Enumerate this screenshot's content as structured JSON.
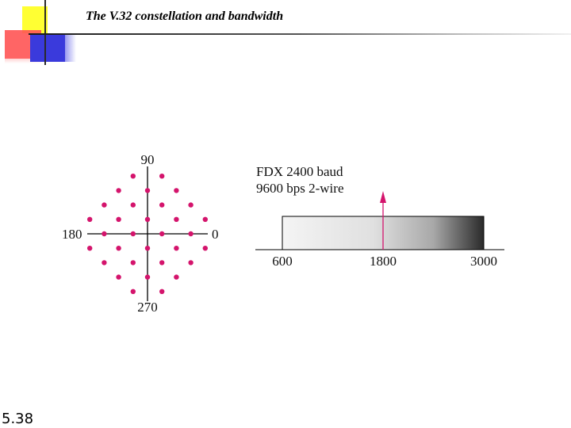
{
  "slide": {
    "title": "The V.32 constellation and bandwidth",
    "number": "5.38"
  },
  "constellation": {
    "labels": {
      "top": "90",
      "bottom": "270",
      "left": "180",
      "right": "0"
    },
    "point_color": "#d4146c",
    "points": [
      [
        -1,
        4
      ],
      [
        1,
        4
      ],
      [
        -2,
        3
      ],
      [
        0,
        3
      ],
      [
        2,
        3
      ],
      [
        -3,
        2
      ],
      [
        -1,
        2
      ],
      [
        1,
        2
      ],
      [
        3,
        2
      ],
      [
        -4,
        1
      ],
      [
        -2,
        1
      ],
      [
        0,
        1
      ],
      [
        2,
        1
      ],
      [
        4,
        1
      ],
      [
        -3,
        0
      ],
      [
        -1,
        0
      ],
      [
        1,
        0
      ],
      [
        3,
        0
      ],
      [
        -4,
        -1
      ],
      [
        -2,
        -1
      ],
      [
        0,
        -1
      ],
      [
        2,
        -1
      ],
      [
        4,
        -1
      ],
      [
        -3,
        -2
      ],
      [
        -1,
        -2
      ],
      [
        1,
        -2
      ],
      [
        3,
        -2
      ],
      [
        -2,
        -3
      ],
      [
        0,
        -3
      ],
      [
        2,
        -3
      ],
      [
        -1,
        -4
      ],
      [
        1,
        -4
      ]
    ]
  },
  "bandwidth": {
    "line1": "FDX 2400 baud",
    "line2": "9600 bps 2-wire",
    "ticks": [
      "600",
      "1800",
      "3000"
    ],
    "band_low": 600,
    "band_high": 3000,
    "carrier": 1800,
    "carrier_color": "#d4146c"
  }
}
